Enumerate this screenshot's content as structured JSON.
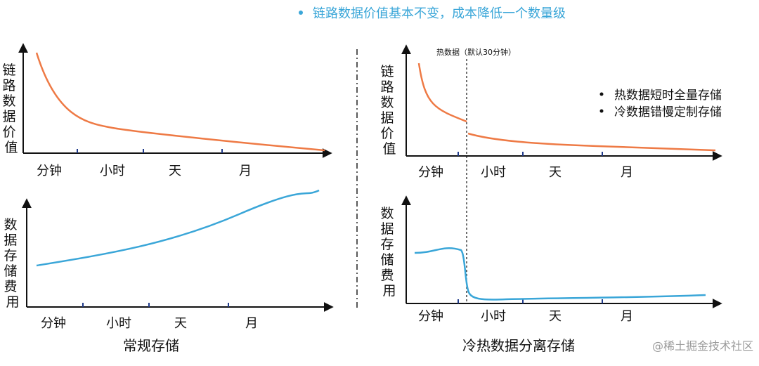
{
  "headline": "链路数据价值基本不变，成本降低一个数量级",
  "watermark": "@稀土掘金技术社区",
  "colors": {
    "value_curve": "#ee7a45",
    "cost_curve": "#3aa6d8",
    "headline": "#3aa6d8",
    "axis": "#111111",
    "tick": "#1f3a8a"
  },
  "regular": {
    "caption": "常规存储",
    "value_chart": {
      "ylabel": "链路数据价值",
      "ticks": [
        "分钟",
        "小时",
        "天",
        "月"
      ]
    },
    "cost_chart": {
      "ylabel": "数据存储费用",
      "ticks": [
        "分钟",
        "小时",
        "天",
        "月"
      ]
    }
  },
  "hotcold": {
    "caption": "冷热数据分离存储",
    "divider_label": "热数据（默认30分钟）",
    "bullets": [
      "热数据短时全量存储",
      "冷数据错慢定制存储"
    ],
    "value_chart": {
      "ylabel": "链路数据价值",
      "ticks": [
        "分钟",
        "小时",
        "天",
        "月"
      ]
    },
    "cost_chart": {
      "ylabel": "数据存储费用",
      "ticks": [
        "分钟",
        "小时",
        "天",
        "月"
      ]
    }
  }
}
